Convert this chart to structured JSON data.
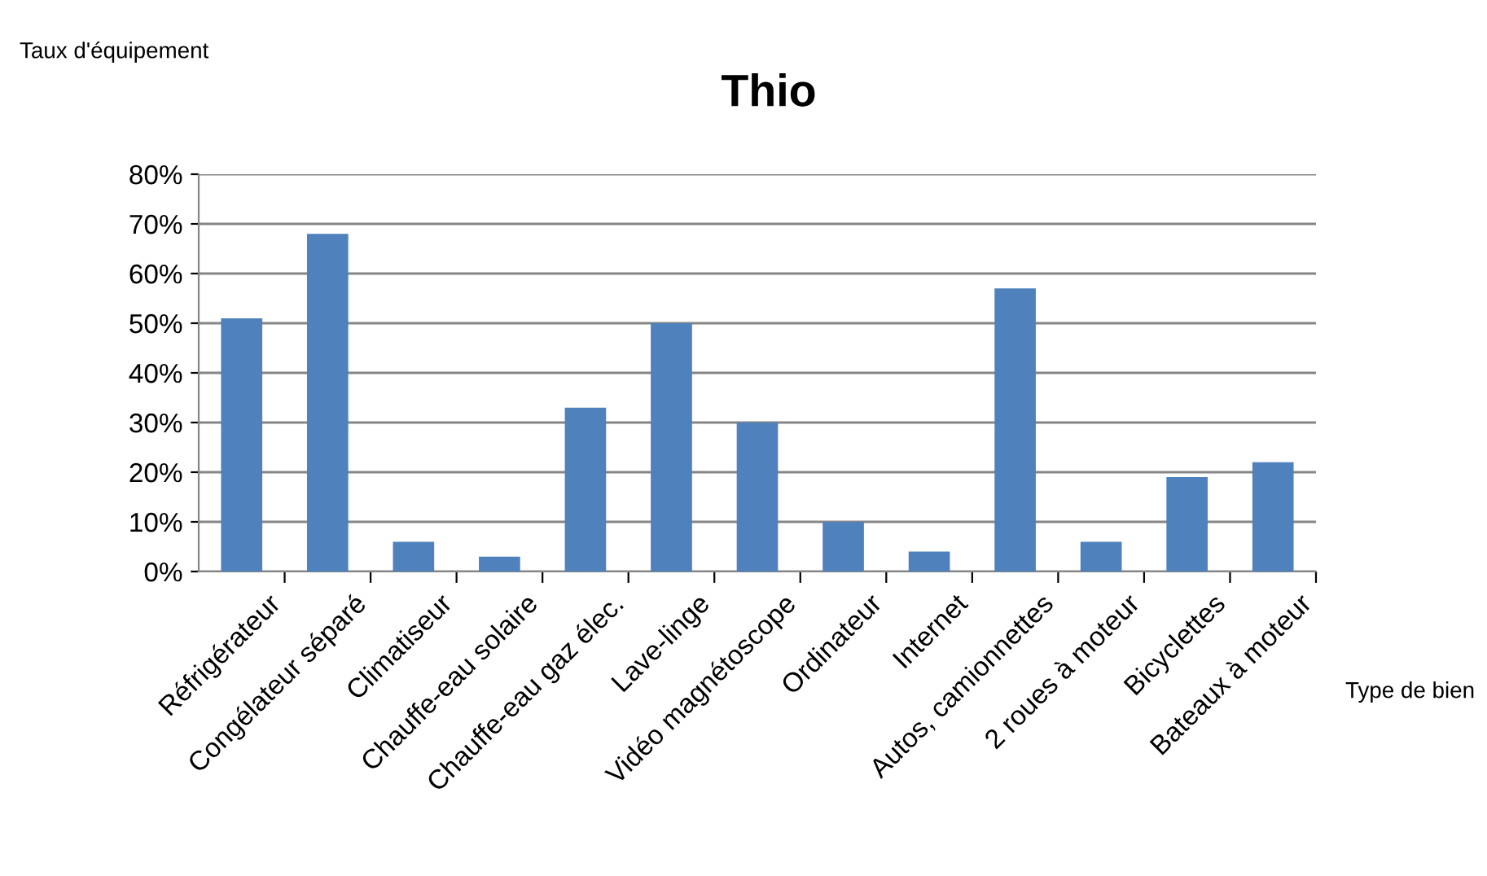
{
  "chart_data": {
    "type": "bar",
    "title": "Thio",
    "xlabel": "Type de bien",
    "ylabel": "Taux d'équipement",
    "categories": [
      "Réfrigérateur",
      "Congélateur séparé",
      "Climatiseur",
      "Chauffe-eau solaire",
      "Chauffe-eau gaz élec.",
      "Lave-linge",
      "Vidéo magnétoscope",
      "Ordinateur",
      "Internet",
      "Autos, camionnettes",
      "2 roues à moteur",
      "Bicyclettes",
      "Bateaux à moteur"
    ],
    "values": [
      51,
      68,
      6,
      3,
      33,
      50,
      30,
      10,
      4,
      57,
      6,
      19,
      22
    ],
    "color": "#4f81bd",
    "ylim": [
      0,
      80
    ],
    "yticks": [
      {
        "value": 0,
        "label": "0%"
      },
      {
        "value": 10,
        "label": "10%"
      },
      {
        "value": 20,
        "label": "20%"
      },
      {
        "value": 30,
        "label": "30%"
      },
      {
        "value": 40,
        "label": "40%"
      },
      {
        "value": 50,
        "label": "50%"
      },
      {
        "value": 60,
        "label": "60%"
      },
      {
        "value": 70,
        "label": "70%"
      },
      {
        "value": 80,
        "label": "80%"
      }
    ],
    "grid": "y",
    "legend": false
  }
}
